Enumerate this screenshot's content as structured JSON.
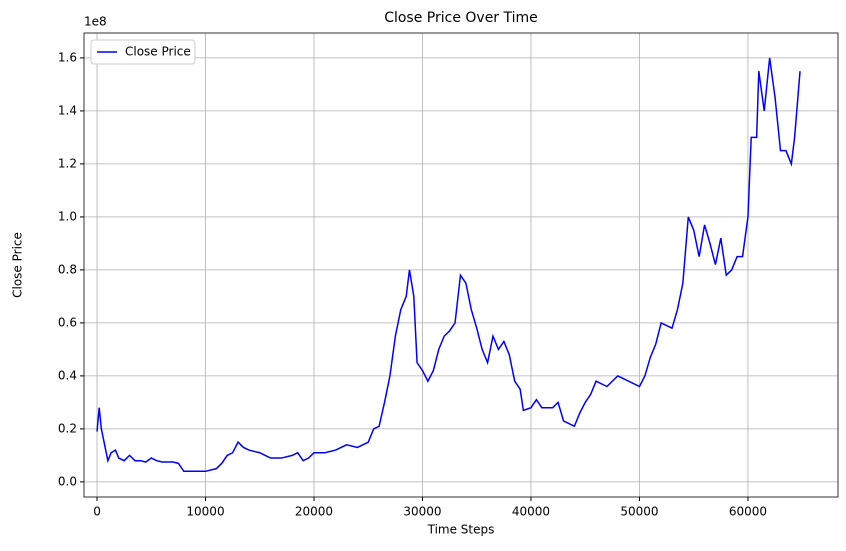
{
  "chart_data": {
    "type": "line",
    "title": "Close Price Over Time",
    "x_label": "Time Steps",
    "y_label": "Close Price",
    "y_offset_label": "1e8",
    "x": [
      0,
      200,
      400,
      700,
      1000,
      1300,
      1700,
      2000,
      2500,
      3000,
      3500,
      4000,
      4500,
      5000,
      5500,
      6000,
      7000,
      7500,
      8000,
      8500,
      9000,
      10000,
      11000,
      11500,
      12000,
      12500,
      13000,
      13500,
      14000,
      15000,
      15500,
      16000,
      17000,
      18000,
      18500,
      19000,
      19500,
      20000,
      21000,
      22000,
      23000,
      24000,
      25000,
      25500,
      26000,
      26500,
      27000,
      27500,
      28000,
      28500,
      28800,
      29200,
      29500,
      30000,
      30500,
      31000,
      31500,
      32000,
      32500,
      33000,
      33500,
      34000,
      34500,
      35000,
      35500,
      36000,
      36500,
      37000,
      37500,
      38000,
      38500,
      39000,
      39300,
      40000,
      40500,
      41000,
      42000,
      42500,
      43000,
      44000,
      44500,
      45000,
      45500,
      46000,
      47000,
      48000,
      49000,
      50000,
      50500,
      51000,
      51500,
      52000,
      53000,
      53500,
      54000,
      54500,
      55000,
      55500,
      56000,
      56500,
      57000,
      57500,
      58000,
      58500,
      59000,
      59500,
      60000,
      60300,
      60800,
      61000,
      61500,
      62000,
      62500,
      63000,
      63500,
      64000,
      64300,
      64800
    ],
    "series": [
      {
        "name": "Close Price",
        "color": "#0000ff",
        "values": [
          19000000,
          28000000,
          20000000,
          14000000,
          8000000,
          11000000,
          12000000,
          9000000,
          8000000,
          10000000,
          8000000,
          8000000,
          7500000,
          9000000,
          8000000,
          7500000,
          7500000,
          7000000,
          4000000,
          4000000,
          4000000,
          4000000,
          5000000,
          7000000,
          10000000,
          11000000,
          15000000,
          13000000,
          12000000,
          11000000,
          10000000,
          9000000,
          9000000,
          10000000,
          11000000,
          8000000,
          9000000,
          11000000,
          11000000,
          12000000,
          14000000,
          13000000,
          15000000,
          20000000,
          21000000,
          30000000,
          40000000,
          55000000,
          65000000,
          70000000,
          80000000,
          70000000,
          45000000,
          42000000,
          38000000,
          42000000,
          50000000,
          55000000,
          57000000,
          60000000,
          78000000,
          75000000,
          65000000,
          58000000,
          50000000,
          45000000,
          55000000,
          50000000,
          53000000,
          48000000,
          38000000,
          35000000,
          27000000,
          28000000,
          31000000,
          28000000,
          28000000,
          30000000,
          23000000,
          21000000,
          26000000,
          30000000,
          33000000,
          38000000,
          36000000,
          40000000,
          38000000,
          36000000,
          40000000,
          47000000,
          52000000,
          60000000,
          58000000,
          65000000,
          75000000,
          100000000,
          95000000,
          85000000,
          97000000,
          90000000,
          82000000,
          92000000,
          78000000,
          80000000,
          85000000,
          85000000,
          100000000,
          130000000,
          130000000,
          155000000,
          140000000,
          160000000,
          145000000,
          125000000,
          125000000,
          120000000,
          130000000,
          155000000
        ]
      }
    ],
    "xlim": [
      -1200,
      68300
    ],
    "ylim": [
      -5700000,
      169400000
    ],
    "xticks": [
      0,
      10000,
      20000,
      30000,
      40000,
      50000,
      60000
    ],
    "yticks": [
      {
        "value": 0,
        "label": "0.0"
      },
      {
        "value": 20000000,
        "label": "0.2"
      },
      {
        "value": 40000000,
        "label": "0.4"
      },
      {
        "value": 60000000,
        "label": "0.6"
      },
      {
        "value": 80000000,
        "label": "0.8"
      },
      {
        "value": 100000000,
        "label": "1.0"
      },
      {
        "value": 120000000,
        "label": "1.2"
      },
      {
        "value": 140000000,
        "label": "1.4"
      },
      {
        "value": 160000000,
        "label": "1.6"
      }
    ],
    "grid": true,
    "legend": "upper left"
  }
}
